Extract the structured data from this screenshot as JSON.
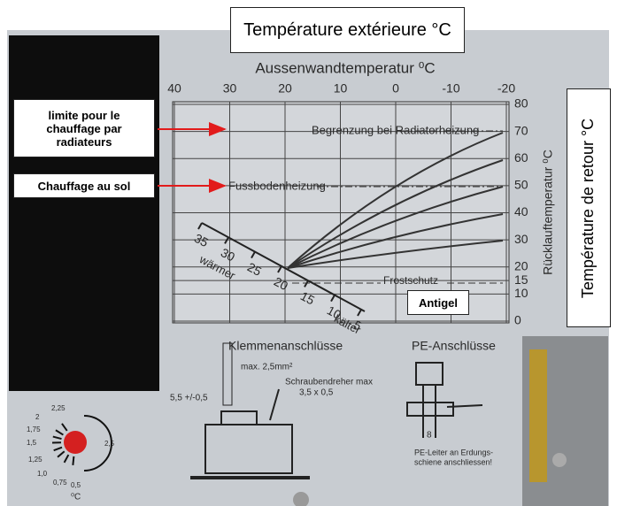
{
  "annotations": {
    "top": "Température extérieure °C",
    "radiator_limit": "limite pour le chauffage par radiateurs",
    "floor": "Chauffage au sol",
    "return": "Température de retour °C",
    "antigel": "Antigel"
  },
  "diagram": {
    "title": "Aussenwandtemperatur ⁰C",
    "x_ticks": [
      40,
      30,
      20,
      10,
      0,
      -10,
      -20
    ],
    "y_title": "Rücklauftemperatur ⁰C",
    "y_ticks": [
      80,
      70,
      60,
      50,
      40,
      30,
      20,
      15,
      10,
      0
    ],
    "radiator_label": "Begrenzung bei Radiatorheizung",
    "floor_label": "Fussbodenheizung",
    "frost_label": "Frostschutz",
    "scale_ticks": [
      35,
      30,
      25,
      20,
      15,
      10,
      5
    ],
    "warmer": "wärmer",
    "colder": "kälter"
  },
  "terminals": {
    "title": "Klemmenanschlüsse",
    "wire": "max. 2,5mm²",
    "strip": "5,5 +/-0,5",
    "screwdriver": "Schraubendreher max",
    "screwdriver_size": "3,5 x 0,5"
  },
  "pe": {
    "title": "PE-Anschlüsse",
    "width": "8",
    "note_1": "PE-Leiter an Erdungs-",
    "note_2": "schiene anschliessen!"
  },
  "dial": {
    "labels": [
      "2,25",
      "2",
      "1,75",
      "1,5",
      "1,25",
      "1,0",
      "0,75",
      "0,5",
      "2,5"
    ],
    "unit": "⁰C"
  }
}
